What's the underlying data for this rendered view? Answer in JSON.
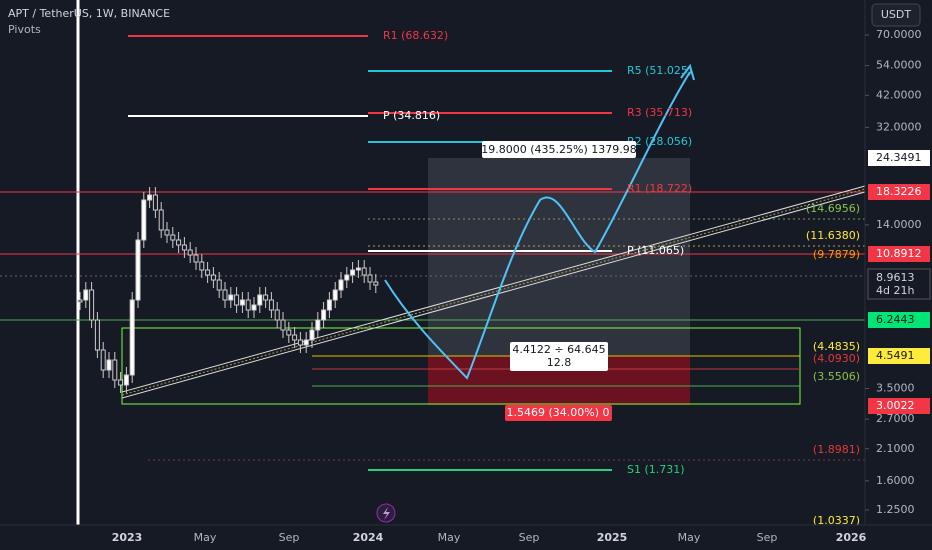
{
  "header": {
    "symbol": "APT / TetherUS, 1W, BINANCE",
    "indicator": "Pivots",
    "currency_button": "USDT"
  },
  "price_axis": [
    {
      "value": 70,
      "label": "70.0000"
    },
    {
      "value": 54,
      "label": "54.0000"
    },
    {
      "value": 42,
      "label": "42.0000"
    },
    {
      "value": 32,
      "label": "32.0000"
    },
    {
      "value": 14,
      "label": "14.0000"
    },
    {
      "value": 3.5,
      "label": "3.5000"
    },
    {
      "value": 2.7,
      "label": "2.7000"
    },
    {
      "value": 2.1,
      "label": "2.1000"
    },
    {
      "value": 1.6,
      "label": "1.6000"
    },
    {
      "value": 1.25,
      "label": "1.2500"
    }
  ],
  "time_axis": [
    "2023",
    "May",
    "Sep",
    "2024",
    "May",
    "Sep",
    "2025",
    "May",
    "Sep",
    "2026"
  ],
  "price_tags": {
    "measure_top": "24.3491",
    "line_red_1": "18.3226",
    "line_red_2": "10.8912",
    "last_price": "8.9613",
    "countdown": "4d 21h",
    "line_green": "6.2443",
    "line_yellow": "4.5491",
    "line_red_3": "3.0022"
  },
  "pivots": {
    "r1_old": "R1 (68.632)",
    "p_old": "P (34.816)",
    "r5": "R5 (51.025)",
    "r3": "R3 (35.713)",
    "r2": "R2 (28.056)",
    "r1": "R1 (18.722)",
    "p": "P (11.065)",
    "s1": "S1 (1.731)"
  },
  "levels": [
    "(14.6956)",
    "(11.6380)",
    "(9.7879)",
    "(4.4835)",
    "(4.0930)",
    "(3.5506)",
    "(1.8981)",
    "(1.0337)"
  ],
  "measure": {
    "top": "19.8000 (435.25%) 1379.98",
    "ratio": "4.4122 ÷ 64.645",
    "ratio_sub": "12.8",
    "bottom": "1.5469 (34.00%) 0"
  }
}
